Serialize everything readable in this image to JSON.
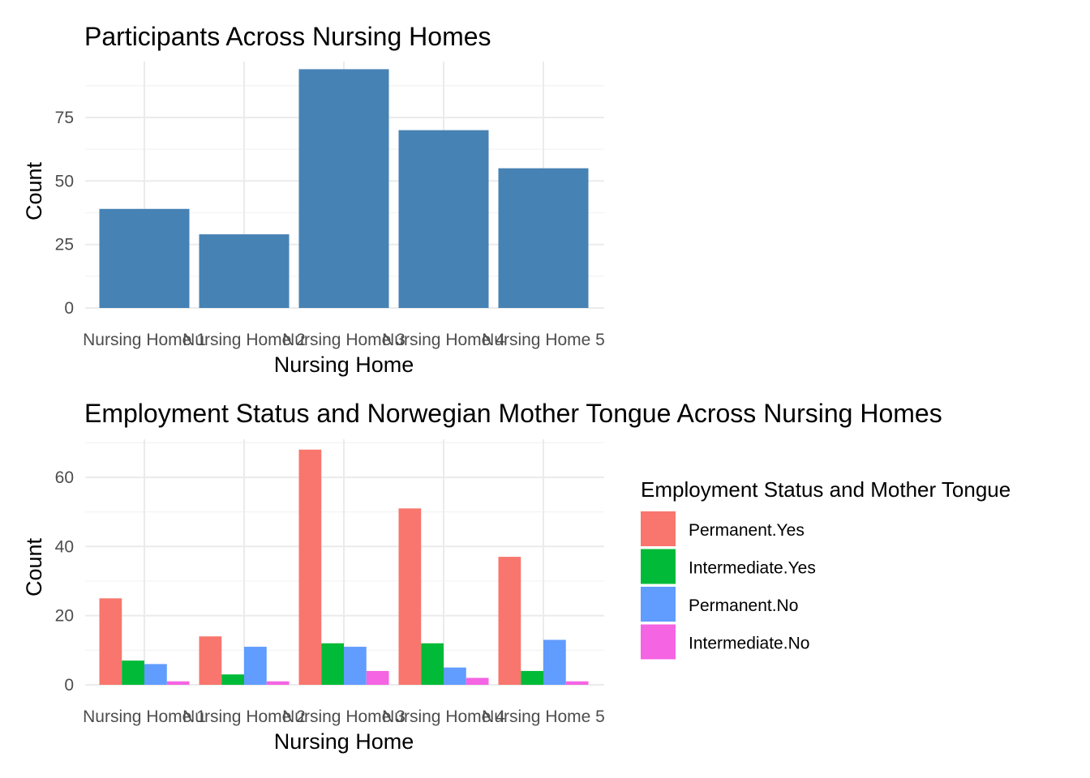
{
  "chart_data": [
    {
      "type": "bar",
      "title": "Participants Across Nursing Homes",
      "xlabel": "Nursing Home",
      "ylabel": "Count",
      "categories": [
        "Nursing Home 1",
        "Nursing Home 2",
        "Nursing Home 3",
        "Nursing Home 4",
        "Nursing Home 5"
      ],
      "values": [
        39,
        29,
        94,
        70,
        55
      ],
      "ylim": [
        0,
        97
      ],
      "yticks": [
        0,
        25,
        50,
        75
      ],
      "grid": true,
      "bar_color": "#4682B4"
    },
    {
      "type": "bar",
      "title": "Employment Status and Norwegian Mother Tongue Across Nursing Homes",
      "xlabel": "Nursing Home",
      "ylabel": "Count",
      "categories": [
        "Nursing Home 1",
        "Nursing Home 2",
        "Nursing Home 3",
        "Nursing Home 4",
        "Nursing Home 5"
      ],
      "ylim": [
        0,
        71
      ],
      "yticks": [
        0,
        20,
        40,
        60
      ],
      "grid": true,
      "legend_title": "Employment Status and Mother Tongue",
      "legend_position": "right",
      "series": [
        {
          "name": "Permanent.Yes",
          "color": "#F8766D",
          "values": [
            25,
            14,
            68,
            51,
            37
          ]
        },
        {
          "name": "Intermediate.Yes",
          "color": "#00BA38",
          "values": [
            7,
            3,
            12,
            12,
            4
          ]
        },
        {
          "name": "Permanent.No",
          "color": "#619CFF",
          "values": [
            6,
            11,
            11,
            5,
            13
          ]
        },
        {
          "name": "Intermediate.No",
          "color": "#F564E3",
          "values": [
            1,
            1,
            4,
            2,
            1
          ]
        }
      ]
    }
  ]
}
